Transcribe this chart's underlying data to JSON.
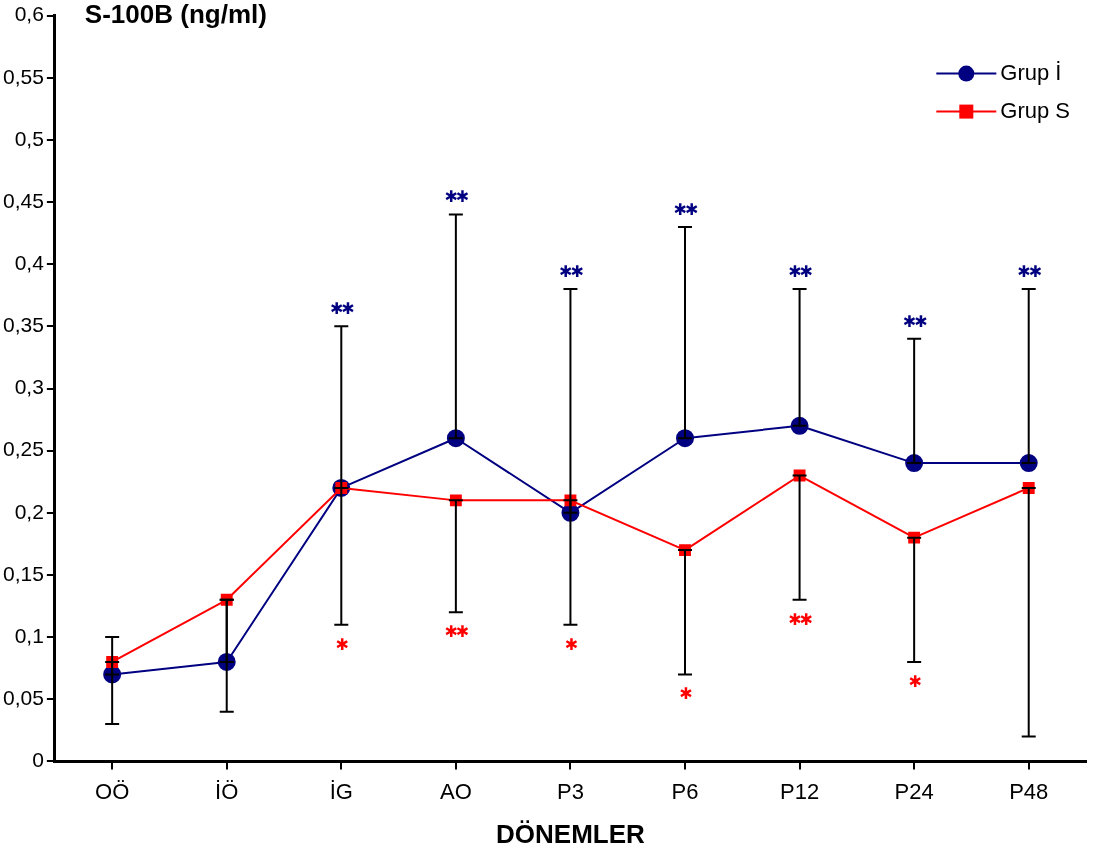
{
  "chart_data": {
    "type": "line",
    "title": "S-100B (ng/ml)",
    "xlabel": "DÖNEMLER",
    "categories": [
      "OÖ",
      "İÖ",
      "İG",
      "AO",
      "P3",
      "P6",
      "P12",
      "P24",
      "P48"
    ],
    "series": [
      {
        "name": "Grup İ",
        "color": "#000080",
        "marker": "circle",
        "values": [
          0.07,
          0.08,
          0.22,
          0.26,
          0.2,
          0.26,
          0.27,
          0.24,
          0.24
        ],
        "errors": [
          [
            0.07,
            0.1
          ],
          [
            0.08,
            0.13
          ],
          [
            0.22,
            0.35
          ],
          [
            0.26,
            0.44
          ],
          [
            0.2,
            0.38
          ],
          [
            0.26,
            0.43
          ],
          [
            0.27,
            0.38
          ],
          [
            0.24,
            0.34
          ],
          [
            0.24,
            0.38
          ]
        ]
      },
      {
        "name": "Grup S",
        "color": "#ff0000",
        "marker": "square",
        "values": [
          0.08,
          0.13,
          0.22,
          0.21,
          0.21,
          0.17,
          0.23,
          0.18,
          0.22
        ],
        "errors": [
          [
            0.03,
            0.08
          ],
          [
            0.04,
            0.13
          ],
          [
            0.11,
            0.22
          ],
          [
            0.12,
            0.21
          ],
          [
            0.11,
            0.21
          ],
          [
            0.07,
            0.17
          ],
          [
            0.13,
            0.23
          ],
          [
            0.08,
            0.18
          ],
          [
            0.02,
            0.22
          ]
        ]
      }
    ],
    "ylim": [
      0,
      0.6
    ],
    "yticks": [
      0,
      {
        "value": 0.05,
        "label": "0,05"
      },
      {
        "value": 0.1,
        "label": "0,1"
      },
      {
        "value": 0.15,
        "label": "0,15"
      },
      {
        "value": 0.2,
        "label": "0,2"
      },
      {
        "value": 0.25,
        "label": "0,25"
      },
      {
        "value": 0.3,
        "label": "0,3"
      },
      {
        "value": 0.35,
        "label": "0,35"
      },
      {
        "value": 0.4,
        "label": "0,4"
      },
      {
        "value": 0.45,
        "label": "0,45"
      },
      {
        "value": 0.5,
        "label": "0,5"
      },
      {
        "value": 0.55,
        "label": "0,55"
      },
      {
        "value": 0.6,
        "label": "0,6"
      }
    ],
    "annotations": [
      {
        "text": "✱✱",
        "x": "İG",
        "y": 0.35
      },
      {
        "text": "✱✱",
        "x": "AO",
        "y": 0.44
      },
      {
        "text": "✱✱",
        "x": "P3",
        "y": 0.38
      },
      {
        "text": "✱✱",
        "x": "P6",
        "y": 0.43
      },
      {
        "text": "✱✱",
        "x": "P12",
        "y": 0.38
      },
      {
        "text": "✱✱",
        "x": "P24",
        "y": 0.34
      },
      {
        "text": "✱✱",
        "x": "P48",
        "y": 0.38
      },
      {
        "text": "✱",
        "x": "İG",
        "y": 0.11
      },
      {
        "text": "✱✱",
        "x": "AO",
        "y": 0.12
      },
      {
        "text": "✱",
        "x": "P3",
        "y": 0.11
      },
      {
        "text": "✱",
        "x": "P6",
        "y": 0.07
      },
      {
        "text": "✱✱",
        "x": "P12",
        "y": 0.13
      },
      {
        "text": "✱",
        "x": "P24",
        "y": 0.08
      }
    ],
    "grid": false,
    "legend": "top right"
  }
}
